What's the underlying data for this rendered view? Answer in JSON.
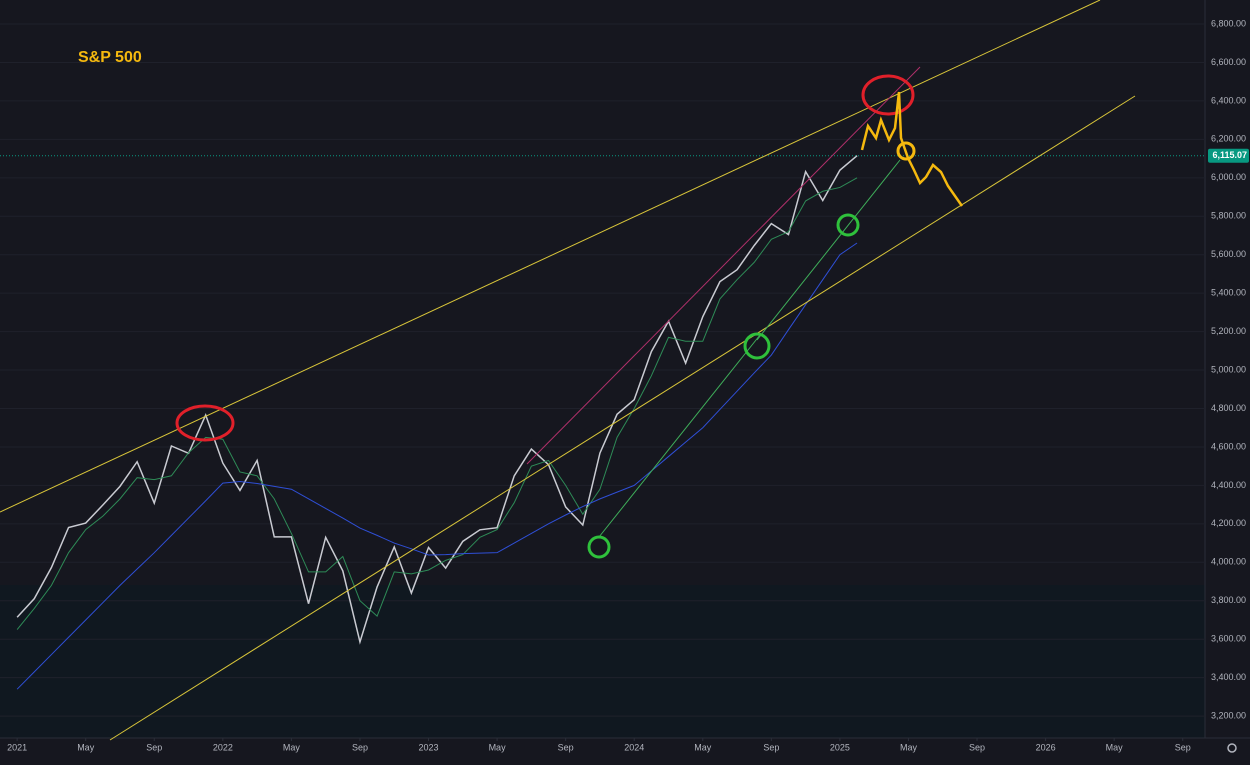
{
  "chart_data": {
    "type": "line",
    "title": "S&P 500",
    "x": [
      0,
      1,
      2,
      3,
      4,
      5,
      6,
      7,
      8,
      9,
      10,
      11,
      12,
      13,
      14,
      15,
      16,
      17,
      18,
      19,
      20,
      21,
      22,
      23,
      24,
      25,
      26,
      27,
      28,
      29,
      30,
      31,
      32,
      33,
      34,
      35,
      36,
      37,
      38,
      39,
      40,
      41,
      42,
      43,
      44,
      45,
      46,
      47,
      48,
      49
    ],
    "series": [
      {
        "color": "#c9cbd2",
        "values": [
          3714,
          3811,
          3973,
          4181,
          4204,
          4298,
          4395,
          4523,
          4308,
          4605,
          4567,
          4766,
          4516,
          4374,
          4530,
          4132,
          4132,
          3785,
          4130,
          3955,
          3586,
          3872,
          4080,
          3840,
          4077,
          3970,
          4109,
          4169,
          4180,
          4450,
          4589,
          4508,
          4288,
          4194,
          4568,
          4770,
          4846,
          5096,
          5254,
          5036,
          5278,
          5460,
          5522,
          5648,
          5762,
          5705,
          6032,
          5882,
          6040,
          6115
        ]
      },
      {
        "color": "#2e8b57",
        "values": [
          3650,
          3760,
          3880,
          4050,
          4170,
          4240,
          4330,
          4440,
          4430,
          4450,
          4570,
          4650,
          4640,
          4470,
          4450,
          4330,
          4150,
          3950,
          3950,
          4030,
          3800,
          3720,
          3950,
          3940,
          3960,
          4010,
          4040,
          4130,
          4170,
          4310,
          4500,
          4530,
          4400,
          4250,
          4380,
          4650,
          4800,
          4970,
          5170,
          5150,
          5150,
          5370,
          5470,
          5560,
          5680,
          5720,
          5880,
          5930,
          5950,
          6000
        ]
      },
      {
        "color": "#2f4fd6",
        "values": [
          3340,
          3430,
          3520,
          3610,
          3700,
          3790,
          3880,
          3965,
          4050,
          4140,
          4230,
          4320,
          4412,
          4420,
          4410,
          4395,
          4380,
          4330,
          4280,
          4230,
          4178,
          4140,
          4100,
          4070,
          4038,
          4040,
          4045,
          4048,
          4050,
          4100,
          4150,
          4200,
          4246,
          4290,
          4330,
          4365,
          4400,
          4475,
          4550,
          4625,
          4700,
          4795,
          4890,
          4985,
          5078,
          5210,
          5340,
          5470,
          5600,
          5661
        ]
      }
    ],
    "xlim": [
      -1,
      69.3
    ],
    "xticks": [
      {
        "value": 0,
        "label": "2021"
      },
      {
        "value": 4,
        "label": "May"
      },
      {
        "value": 8,
        "label": "Sep"
      },
      {
        "value": 12,
        "label": "2022"
      },
      {
        "value": 16,
        "label": "May"
      },
      {
        "value": 20,
        "label": "Sep"
      },
      {
        "value": 24,
        "label": "2023"
      },
      {
        "value": 28,
        "label": "May"
      },
      {
        "value": 32,
        "label": "Sep"
      },
      {
        "value": 36,
        "label": "2024"
      },
      {
        "value": 40,
        "label": "May"
      },
      {
        "value": 44,
        "label": "Sep"
      },
      {
        "value": 48,
        "label": "2025"
      },
      {
        "value": 52,
        "label": "May"
      },
      {
        "value": 56,
        "label": "Sep"
      },
      {
        "value": 60,
        "label": "2026"
      },
      {
        "value": 64,
        "label": "May"
      },
      {
        "value": 68,
        "label": "Sep"
      }
    ],
    "ylim": [
      3086,
      6925
    ],
    "yticks": [
      {
        "value": 3200,
        "label": "3,200.00"
      },
      {
        "value": 3400,
        "label": "3,400.00"
      },
      {
        "value": 3600,
        "label": "3,600.00"
      },
      {
        "value": 3800,
        "label": "3,800.00"
      },
      {
        "value": 4000,
        "label": "4,000.00"
      },
      {
        "value": 4200,
        "label": "4,200.00"
      },
      {
        "value": 4400,
        "label": "4,400.00"
      },
      {
        "value": 4600,
        "label": "4,600.00"
      },
      {
        "value": 4800,
        "label": "4,800.00"
      },
      {
        "value": 5000,
        "label": "5,000.00"
      },
      {
        "value": 5200,
        "label": "5,200.00"
      },
      {
        "value": 5400,
        "label": "5,400.00"
      },
      {
        "value": 5600,
        "label": "5,600.00"
      },
      {
        "value": 5800,
        "label": "5,800.00"
      },
      {
        "value": 6000,
        "label": "6,000.00"
      },
      {
        "value": 6200,
        "label": "6,200.00"
      },
      {
        "value": 6400,
        "label": "6,400.00"
      },
      {
        "value": 6600,
        "label": "6,600.00"
      },
      {
        "value": 6800,
        "label": "6,800.00"
      }
    ],
    "last_price": {
      "value": 6115.07,
      "label": "6,115.07",
      "color": "#089981"
    }
  }
}
